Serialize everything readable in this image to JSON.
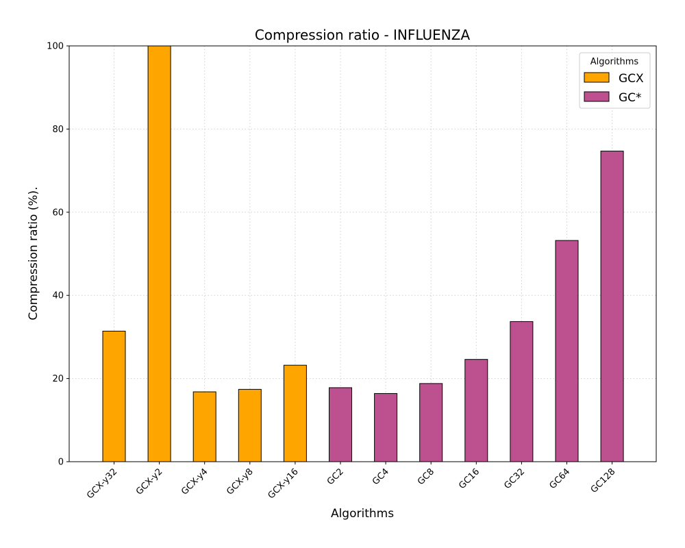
{
  "chart_data": {
    "type": "bar",
    "title": "Compression ratio -  INFLUENZA",
    "xlabel": "Algorithms",
    "ylabel": "Compression ratio (%).",
    "ylim": [
      0,
      100
    ],
    "yticks": [
      0,
      20,
      40,
      60,
      80,
      100
    ],
    "grid": true,
    "legend_position": "top-right",
    "legend_title": "Algorithms",
    "categories": [
      "GCX-y32",
      "GCX-y2",
      "GCX-y4",
      "GCX-y8",
      "GCX-y16",
      "GC2",
      "GC4",
      "GC8",
      "GC16",
      "GC32",
      "GC64",
      "GC128"
    ],
    "values": [
      31.4,
      100.0,
      16.8,
      17.4,
      23.2,
      17.8,
      16.4,
      18.8,
      24.6,
      33.7,
      53.2,
      74.7
    ],
    "groups": [
      "GCX",
      "GCX",
      "GCX",
      "GCX",
      "GCX",
      "GC*",
      "GC*",
      "GC*",
      "GC*",
      "GC*",
      "GC*",
      "GC*"
    ],
    "series": [
      {
        "name": "GCX",
        "color": "#FFA500"
      },
      {
        "name": "GC*",
        "color": "#BD5190"
      }
    ]
  }
}
